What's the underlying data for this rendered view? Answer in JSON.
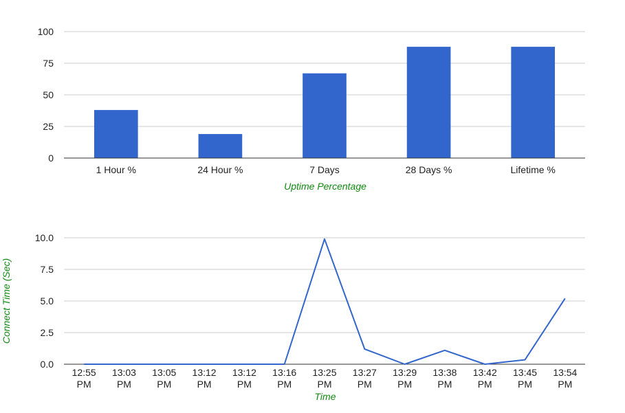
{
  "chart_data": [
    {
      "type": "bar",
      "categories": [
        "1 Hour %",
        "24 Hour %",
        "7 Days",
        "28 Days %",
        "Lifetime %"
      ],
      "values": [
        38,
        19,
        67,
        88,
        88
      ],
      "xlabel": "Uptime Percentage",
      "ylabel": "",
      "ylim": [
        0,
        100
      ],
      "yticks": [
        "0",
        "25",
        "50",
        "75",
        "100"
      ],
      "ytick_values": [
        0,
        25,
        50,
        75,
        100
      ],
      "grid": true,
      "color": "#3366cc"
    },
    {
      "type": "line",
      "categories": [
        [
          "12:55",
          "PM"
        ],
        [
          "13:03",
          "PM"
        ],
        [
          "13:05",
          "PM"
        ],
        [
          "13:12",
          "PM"
        ],
        [
          "13:12",
          "PM"
        ],
        [
          "13:16",
          "PM"
        ],
        [
          "13:25",
          "PM"
        ],
        [
          "13:27",
          "PM"
        ],
        [
          "13:29",
          "PM"
        ],
        [
          "13:38",
          "PM"
        ],
        [
          "13:42",
          "PM"
        ],
        [
          "13:45",
          "PM"
        ],
        [
          "13:54",
          "PM"
        ]
      ],
      "values": [
        0,
        0,
        0,
        0,
        0,
        0,
        9.9,
        1.2,
        0,
        1.1,
        0,
        0.35,
        5.2
      ],
      "xlabel": "Time",
      "ylabel": "Connect Time (Sec)",
      "ylim": [
        0,
        10
      ],
      "yticks": [
        "0.0",
        "2.5",
        "5.0",
        "7.5",
        "10.0"
      ],
      "ytick_values": [
        0,
        2.5,
        5,
        7.5,
        10
      ],
      "grid": true,
      "color": "#3366cc"
    }
  ]
}
